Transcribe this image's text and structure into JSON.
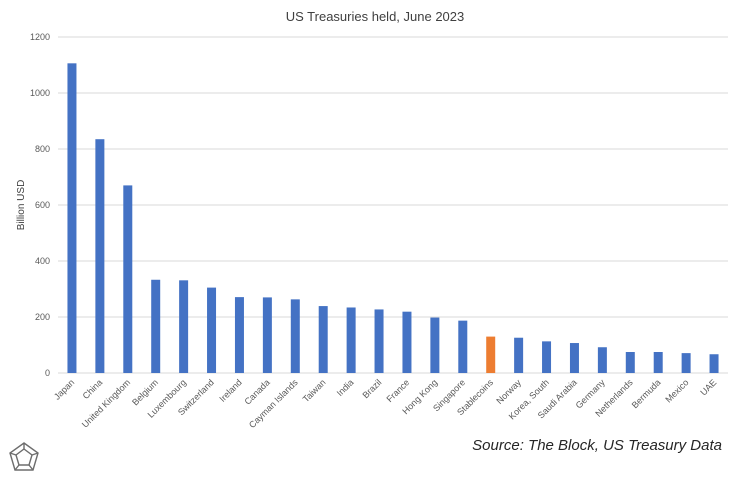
{
  "chart_data": {
    "type": "bar",
    "title": "US Treasuries held, June 2023",
    "xlabel": "",
    "ylabel": "Billion USD",
    "ylim": [
      0,
      1200
    ],
    "yticks": [
      0,
      200,
      400,
      600,
      800,
      1000,
      1200
    ],
    "grid": true,
    "categories": [
      "Japan",
      "China",
      "United Kingdom",
      "Belgium",
      "Luxembourg",
      "Switzerland",
      "Ireland",
      "Canada",
      "Cayman Islands",
      "Taiwan",
      "India",
      "Brazil",
      "France",
      "Hong Kong",
      "Singapore",
      "Stablecoins",
      "Norway",
      "Korea, South",
      "Saudi Arabia",
      "Germany",
      "Netherlands",
      "Bermuda",
      "Mexico",
      "UAE"
    ],
    "values": [
      1106,
      835,
      670,
      333,
      331,
      305,
      271,
      270,
      263,
      239,
      234,
      227,
      219,
      198,
      187,
      130,
      126,
      113,
      107,
      92,
      75,
      75,
      71,
      67
    ],
    "colors": {
      "default": "#4472C4",
      "highlight": "#ED7D31",
      "highlight_category": "Stablecoins",
      "grid": "#D9D9D9"
    }
  },
  "source": "Source: The Block, US Treasury Data",
  "logo": {
    "icon": "the-block-logo-icon"
  }
}
